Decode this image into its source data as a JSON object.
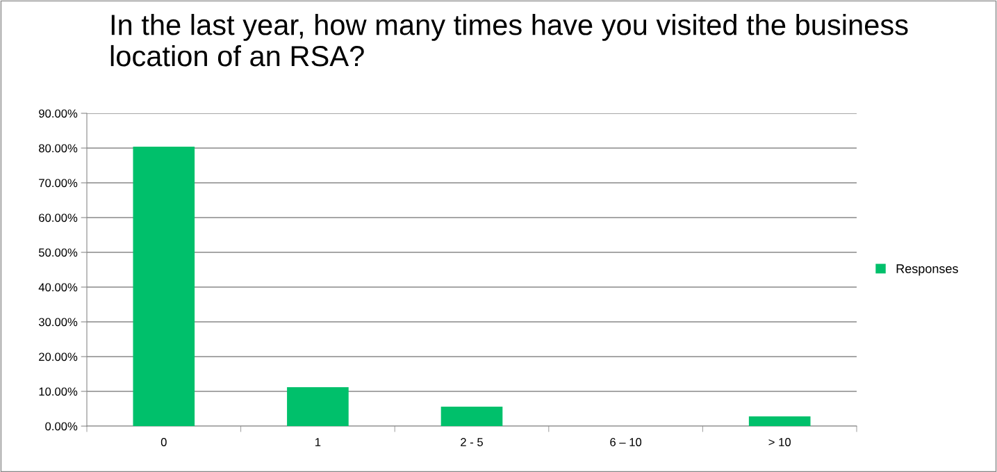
{
  "chart_data": {
    "type": "bar",
    "title": "In the last year, how many times have you visited the business location of an RSA?",
    "categories": [
      "0",
      "1",
      "2 - 5",
      "6 – 10",
      "> 10"
    ],
    "series": [
      {
        "name": "Responses",
        "color": "#00c06b",
        "values": [
          80.4,
          11.2,
          5.6,
          0,
          2.8
        ]
      }
    ],
    "ylim": [
      0,
      90
    ],
    "yticks": [
      {
        "value": 0,
        "label": "0.00%"
      },
      {
        "value": 10,
        "label": "10.00%"
      },
      {
        "value": 20,
        "label": "20.00%"
      },
      {
        "value": 30,
        "label": "30.00%"
      },
      {
        "value": 40,
        "label": "40.00%"
      },
      {
        "value": 50,
        "label": "50.00%"
      },
      {
        "value": 60,
        "label": "60.00%"
      },
      {
        "value": 70,
        "label": "70.00%"
      },
      {
        "value": 80,
        "label": "80.00%"
      },
      {
        "value": 90,
        "label": "90.00%"
      }
    ],
    "grid": "y",
    "legend": "right"
  }
}
